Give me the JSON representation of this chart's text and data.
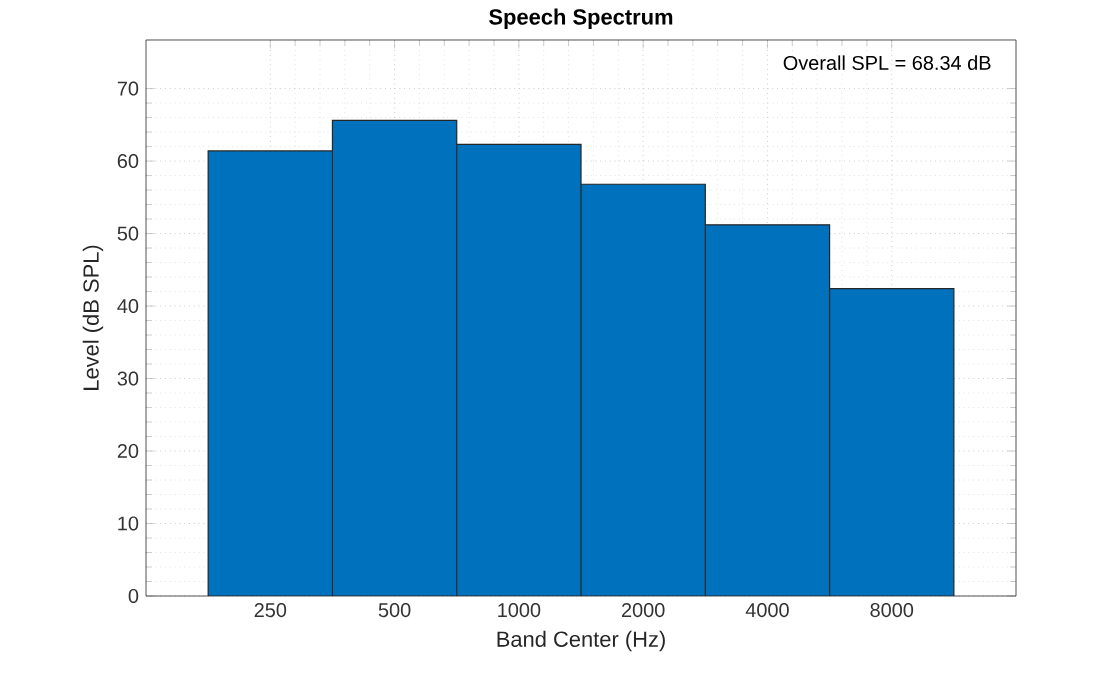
{
  "chart_data": {
    "type": "bar",
    "title": "Speech Spectrum",
    "xlabel": "Band Center (Hz)",
    "ylabel": "Level (dB SPL)",
    "categories": [
      "250",
      "500",
      "1000",
      "2000",
      "4000",
      "8000"
    ],
    "values": [
      61.4,
      65.6,
      62.3,
      56.8,
      51.2,
      42.4
    ],
    "color": "#0072bd",
    "ylim": [
      0,
      76.7
    ],
    "yticks": [
      0,
      10,
      20,
      30,
      40,
      50,
      60,
      70
    ],
    "grid": true,
    "annotations": [
      "Overall SPL = 68.34 dB"
    ]
  }
}
